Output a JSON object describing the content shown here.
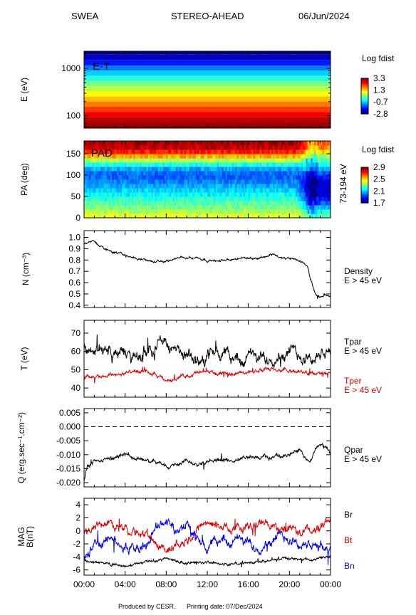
{
  "header": {
    "instrument": "SWEA",
    "spacecraft": "STEREO-AHEAD",
    "date": "06/Jun/2024"
  },
  "footer": {
    "credit": "Produced by CESR.",
    "printing_date": "Printing date: 07/Dec/2024"
  },
  "colors": {
    "black_trace": "#000000",
    "red_trace": "#e00000",
    "blue_trace": "#0000ff"
  },
  "chart_data": [
    {
      "type": "heatmap",
      "panel": "energy-time",
      "panel_label": "E-T",
      "ylabel": "E (eV)",
      "yscale": "log",
      "ylim": [
        55,
        2300
      ],
      "yticks": [
        "1000",
        "100"
      ],
      "colorbar": {
        "title": "Log fdist",
        "ticks": [
          "3.3",
          "1.3",
          "-0.7",
          "-2.8"
        ],
        "range": [
          -2.8,
          3.3
        ]
      },
      "bands": [
        {
          "e_low": 1950,
          "e_high": 2300,
          "value": -2.8
        },
        {
          "e_low": 1500,
          "e_high": 1950,
          "value": -2.4
        },
        {
          "e_low": 1150,
          "e_high": 1500,
          "value": -1.9
        },
        {
          "e_low": 900,
          "e_high": 1150,
          "value": -1.3
        },
        {
          "e_low": 700,
          "e_high": 900,
          "value": -0.8
        },
        {
          "e_low": 540,
          "e_high": 700,
          "value": -0.3
        },
        {
          "e_low": 420,
          "e_high": 540,
          "value": 0.2
        },
        {
          "e_low": 330,
          "e_high": 420,
          "value": 0.6
        },
        {
          "e_low": 255,
          "e_high": 330,
          "value": 1.0
        },
        {
          "e_low": 200,
          "e_high": 255,
          "value": 1.4
        },
        {
          "e_low": 155,
          "e_high": 200,
          "value": 1.8
        },
        {
          "e_low": 120,
          "e_high": 155,
          "value": 2.2
        },
        {
          "e_low": 95,
          "e_high": 120,
          "value": 2.6
        },
        {
          "e_low": 75,
          "e_high": 95,
          "value": 2.9
        },
        {
          "e_low": 62,
          "e_high": 75,
          "value": 3.1
        },
        {
          "e_low": 55,
          "e_high": 62,
          "value": 3.3
        }
      ]
    },
    {
      "type": "heatmap",
      "panel": "pitch-angle",
      "panel_label": "PAD",
      "ylabel": "PA (deg)",
      "ylim": [
        0,
        180
      ],
      "yticks": [
        "150",
        "100",
        "50",
        "0"
      ],
      "right_label": "73-194 eV",
      "colorbar": {
        "title": "Log fdist",
        "ticks": [
          "2.9",
          "2.5",
          "2.1",
          "1.7"
        ],
        "range": [
          1.7,
          2.9
        ]
      },
      "x_hours": [
        0,
        20.5,
        22,
        24
      ],
      "pa_bins": [
        5,
        15,
        25,
        35,
        45,
        55,
        65,
        75,
        85,
        95,
        105,
        115,
        125,
        135,
        145,
        155,
        165,
        175
      ],
      "profile_quiet": [
        2.42,
        2.36,
        2.3,
        2.25,
        2.2,
        2.15,
        2.1,
        2.05,
        2.0,
        1.97,
        1.98,
        2.05,
        2.18,
        2.35,
        2.55,
        2.72,
        2.82,
        2.85
      ],
      "profile_late": [
        2.25,
        2.15,
        2.05,
        1.95,
        1.85,
        1.8,
        1.78,
        1.78,
        1.8,
        1.85,
        1.95,
        2.05,
        2.15,
        2.25,
        2.35,
        2.5,
        2.6,
        2.65
      ]
    },
    {
      "type": "line",
      "panel": "density",
      "ylabel": "N (cm⁻³)",
      "ylim": [
        0.38,
        1.06
      ],
      "yticks": [
        "1.0",
        "0.9",
        "0.8",
        "0.7",
        "0.6",
        "0.5",
        "0.4"
      ],
      "series": [
        {
          "name": "Density",
          "sublabel": "E > 45 eV",
          "color": "#000000",
          "x": [
            0,
            0.5,
            1,
            1.5,
            2,
            3,
            4,
            5,
            6,
            7,
            8,
            9,
            10,
            11,
            12,
            13,
            14,
            15,
            16,
            17,
            18,
            18.5,
            19,
            20,
            20.5,
            21,
            21.5,
            21.8,
            22,
            22.5,
            23,
            23.5,
            24
          ],
          "y": [
            0.94,
            0.97,
            0.96,
            0.93,
            0.9,
            0.87,
            0.84,
            0.82,
            0.8,
            0.78,
            0.79,
            0.81,
            0.83,
            0.82,
            0.8,
            0.79,
            0.8,
            0.81,
            0.82,
            0.82,
            0.84,
            0.86,
            0.82,
            0.81,
            0.8,
            0.79,
            0.77,
            0.74,
            0.64,
            0.5,
            0.47,
            0.48,
            0.48
          ],
          "noise": 0.012
        }
      ]
    },
    {
      "type": "line",
      "panel": "temperature",
      "ylabel": "T (eV)",
      "ylim": [
        35,
        77
      ],
      "yticks": [
        "70",
        "60",
        "50",
        "40"
      ],
      "series": [
        {
          "name": "Tpar",
          "sublabel": "E > 45 eV",
          "color": "#000000",
          "x": [
            0,
            1,
            2,
            3,
            4,
            5,
            6,
            7,
            8,
            9,
            10,
            11,
            12,
            13,
            14,
            15,
            16,
            17,
            18,
            19,
            20,
            21,
            22,
            23,
            24
          ],
          "y": [
            63,
            61,
            62,
            58,
            60,
            55,
            60,
            64,
            66,
            59,
            57,
            54,
            58,
            60,
            58,
            55,
            58,
            55,
            57,
            58,
            60,
            58,
            57,
            57,
            59
          ],
          "noise": 4.0
        },
        {
          "name": "Tper",
          "sublabel": "E > 45 eV",
          "color": "#e00000",
          "x": [
            0,
            2,
            4,
            6,
            8,
            10,
            12,
            14,
            16,
            18,
            20,
            22,
            24
          ],
          "y": [
            46,
            47,
            48,
            49,
            44,
            47,
            49,
            47,
            49,
            50,
            49,
            48,
            48
          ],
          "noise": 1.3
        }
      ]
    },
    {
      "type": "line",
      "panel": "heat-flux",
      "ylabel": "Q (erg.sec⁻¹.cm⁻²)",
      "ylim": [
        -0.0215,
        0.0065
      ],
      "yticks": [
        "0.005",
        "0.000",
        "-0.005",
        "-0.010",
        "-0.015",
        "-0.020"
      ],
      "reference_line": 0.0,
      "series": [
        {
          "name": "Qpar",
          "sublabel": "E > 45 eV",
          "color": "#000000",
          "x": [
            0,
            0.3,
            1,
            2,
            3,
            4,
            5,
            6,
            7,
            8,
            9,
            10,
            11,
            12,
            13,
            14,
            15,
            16,
            17,
            18,
            19,
            20,
            20.5,
            21,
            21.5,
            22,
            22.5,
            23,
            24
          ],
          "y": [
            -0.019,
            -0.014,
            -0.013,
            -0.012,
            -0.011,
            -0.01,
            -0.011,
            -0.012,
            -0.013,
            -0.014,
            -0.013,
            -0.012,
            -0.013,
            -0.012,
            -0.012,
            -0.012,
            -0.012,
            -0.011,
            -0.011,
            -0.011,
            -0.01,
            -0.01,
            -0.008,
            -0.009,
            -0.011,
            -0.013,
            -0.008,
            -0.006,
            -0.009
          ],
          "noise": 0.0009
        }
      ]
    },
    {
      "type": "line",
      "panel": "magnetic-field",
      "ylabel": "MAG B(nT)",
      "ylim": [
        -6.8,
        5.0
      ],
      "yticks": [
        "4",
        "2",
        "0",
        "-2",
        "-4",
        "-6"
      ],
      "xticks": [
        "00:00",
        "04:00",
        "08:00",
        "12:00",
        "16:00",
        "20:00",
        "00:00"
      ],
      "xlim": [
        0,
        24
      ],
      "series": [
        {
          "name": "Br",
          "color": "#000000",
          "x": [
            0,
            2,
            4,
            6,
            8,
            10,
            12,
            14,
            16,
            18,
            20,
            22,
            24
          ],
          "y": [
            -4.5,
            -5.0,
            -5.5,
            -4.8,
            -4.2,
            -5.0,
            -4.8,
            -5.2,
            -5.0,
            -4.5,
            -4.2,
            -4.5,
            -4.0
          ],
          "noise": 0.25
        },
        {
          "name": "Bt",
          "color": "#e00000",
          "x": [
            0,
            1,
            2,
            3,
            4,
            5,
            6,
            7,
            8,
            9,
            10,
            11,
            12,
            13,
            14,
            15,
            16,
            17,
            18,
            19,
            20,
            21,
            22,
            23,
            24
          ],
          "y": [
            -0.5,
            0.5,
            1.5,
            1.0,
            0.5,
            0,
            -0.5,
            -2.0,
            -3.0,
            -2.0,
            -1.5,
            0.5,
            1.5,
            1.0,
            0.5,
            0.5,
            0.5,
            1.0,
            1.0,
            0.5,
            0.5,
            -0.5,
            0.0,
            0.5,
            1.5
          ],
          "noise": 0.8
        },
        {
          "name": "Bn",
          "color": "#0000ff",
          "x": [
            0,
            1,
            2,
            3,
            4,
            5,
            6,
            7,
            8,
            9,
            10,
            11,
            12,
            13,
            14,
            15,
            16,
            17,
            18,
            19,
            20,
            21,
            22,
            23,
            24
          ],
          "y": [
            -3.5,
            -2.5,
            -1.5,
            -1.5,
            -2.5,
            -3.0,
            -2.0,
            0.5,
            1.5,
            0.5,
            0.5,
            -1.5,
            -2.5,
            -1.5,
            -1.5,
            -1.5,
            -2.0,
            -2.5,
            -1.5,
            -1.0,
            -1.0,
            -2.0,
            -2.5,
            -2.5,
            -2.5
          ],
          "noise": 0.9
        }
      ]
    }
  ]
}
